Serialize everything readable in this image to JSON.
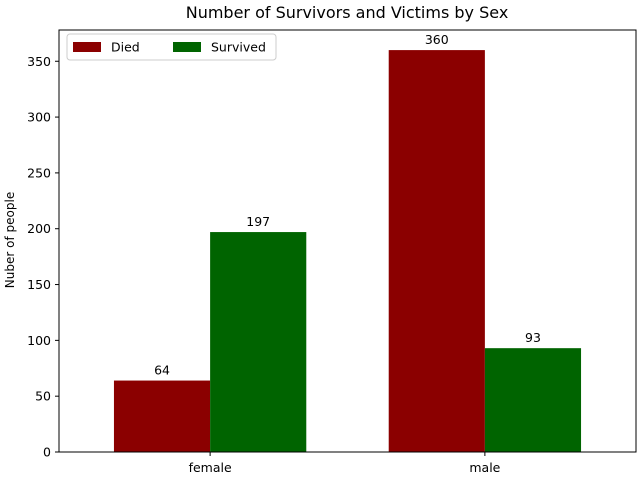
{
  "chart_data": {
    "type": "bar",
    "title": "Number of Survivors and Victims by Sex",
    "xlabel": "",
    "ylabel": "Nuber of people",
    "categories": [
      "female",
      "male"
    ],
    "series": [
      {
        "name": "Died",
        "values": [
          64,
          360
        ],
        "color": "#8b0000"
      },
      {
        "name": "Survived",
        "values": [
          197,
          93
        ],
        "color": "#006400"
      }
    ],
    "ylim": [
      0,
      378
    ],
    "yticks": [
      0,
      50,
      100,
      150,
      200,
      250,
      300,
      350
    ],
    "grid": false,
    "legend": {
      "location": "upper-left",
      "ncol": 2
    }
  }
}
